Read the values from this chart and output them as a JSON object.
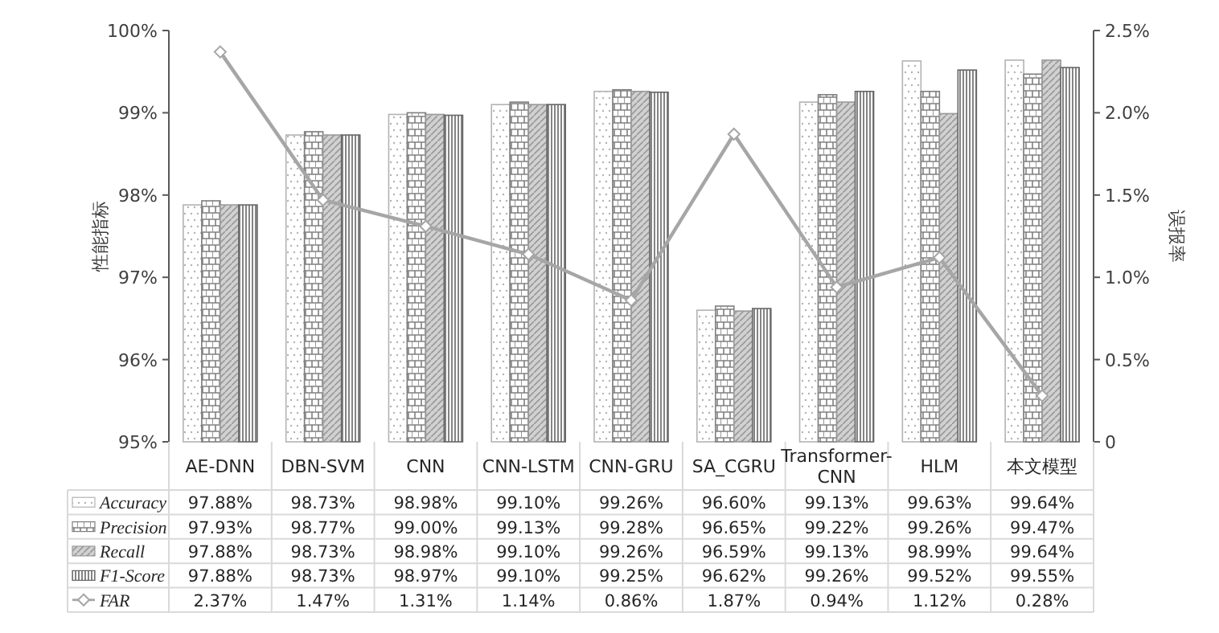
{
  "chart_data": {
    "type": "bar",
    "ylabel": "性能指标",
    "y2label": "误报率",
    "categories": [
      "AE-DNN",
      "DBN-SVM",
      "CNN",
      "CNN-LSTM",
      "CNN-GRU",
      "SA_CGRU",
      "Transformer-CNN",
      "HLM",
      "本文模型"
    ],
    "ylim": [
      95,
      100
    ],
    "yticks": [
      {
        "value": 95,
        "label": "95%"
      },
      {
        "value": 96,
        "label": "96%"
      },
      {
        "value": 97,
        "label": "97%"
      },
      {
        "value": 98,
        "label": "98%"
      },
      {
        "value": 99,
        "label": "99%"
      },
      {
        "value": 100,
        "label": "100%"
      }
    ],
    "y2lim": [
      0,
      2.5
    ],
    "y2ticks": [
      0,
      {
        "value": 0.5,
        "label": "0.5%"
      },
      {
        "value": 1,
        "label": "1.0%"
      },
      {
        "value": 1.5,
        "label": "1.5%"
      },
      {
        "value": 2,
        "label": "2.0%"
      },
      {
        "value": 2.5,
        "label": "2.5%"
      }
    ],
    "legend": "bottom left",
    "grid": false,
    "marker": "diamond",
    "series": [
      {
        "name": "Accuracy",
        "color": "#b3b3b3",
        "values": [
          97.88,
          98.73,
          98.98,
          99.1,
          99.26,
          96.6,
          99.13,
          99.63,
          99.64
        ],
        "value_labels": [
          "97.88%",
          "98.73%",
          "98.98%",
          "99.10%",
          "99.26%",
          "96.60%",
          "99.13%",
          "99.63%",
          "99.64%"
        ]
      },
      {
        "name": "Precision",
        "color": "#7f7f7f",
        "values": [
          97.93,
          98.77,
          99.0,
          99.13,
          99.28,
          96.65,
          99.22,
          99.26,
          99.47
        ],
        "value_labels": [
          "97.93%",
          "98.77%",
          "99.00%",
          "99.13%",
          "99.28%",
          "96.65%",
          "99.22%",
          "99.26%",
          "99.47%"
        ]
      },
      {
        "name": "Recall",
        "color": "#999999",
        "values": [
          97.88,
          98.73,
          98.98,
          99.1,
          99.26,
          96.59,
          99.13,
          98.99,
          99.64
        ],
        "value_labels": [
          "97.88%",
          "98.73%",
          "98.98%",
          "99.10%",
          "99.26%",
          "96.59%",
          "99.13%",
          "98.99%",
          "99.64%"
        ]
      },
      {
        "name": "F1-Score",
        "color": "#666666",
        "values": [
          97.88,
          98.73,
          98.97,
          99.1,
          99.25,
          96.62,
          99.26,
          99.52,
          99.55
        ],
        "value_labels": [
          "97.88%",
          "98.73%",
          "98.97%",
          "99.10%",
          "99.25%",
          "96.62%",
          "99.26%",
          "99.52%",
          "99.55%"
        ]
      },
      {
        "name": "FAR",
        "type": "line",
        "axis": "y2",
        "color": "#a6a6a6",
        "values": [
          2.37,
          1.47,
          1.31,
          1.14,
          0.86,
          1.87,
          0.94,
          1.12,
          0.28
        ],
        "value_labels": [
          "2.37%",
          "1.47%",
          "1.31%",
          "1.14%",
          "0.86%",
          "1.87%",
          "0.94%",
          "1.12%",
          "0.28%"
        ]
      }
    ]
  }
}
